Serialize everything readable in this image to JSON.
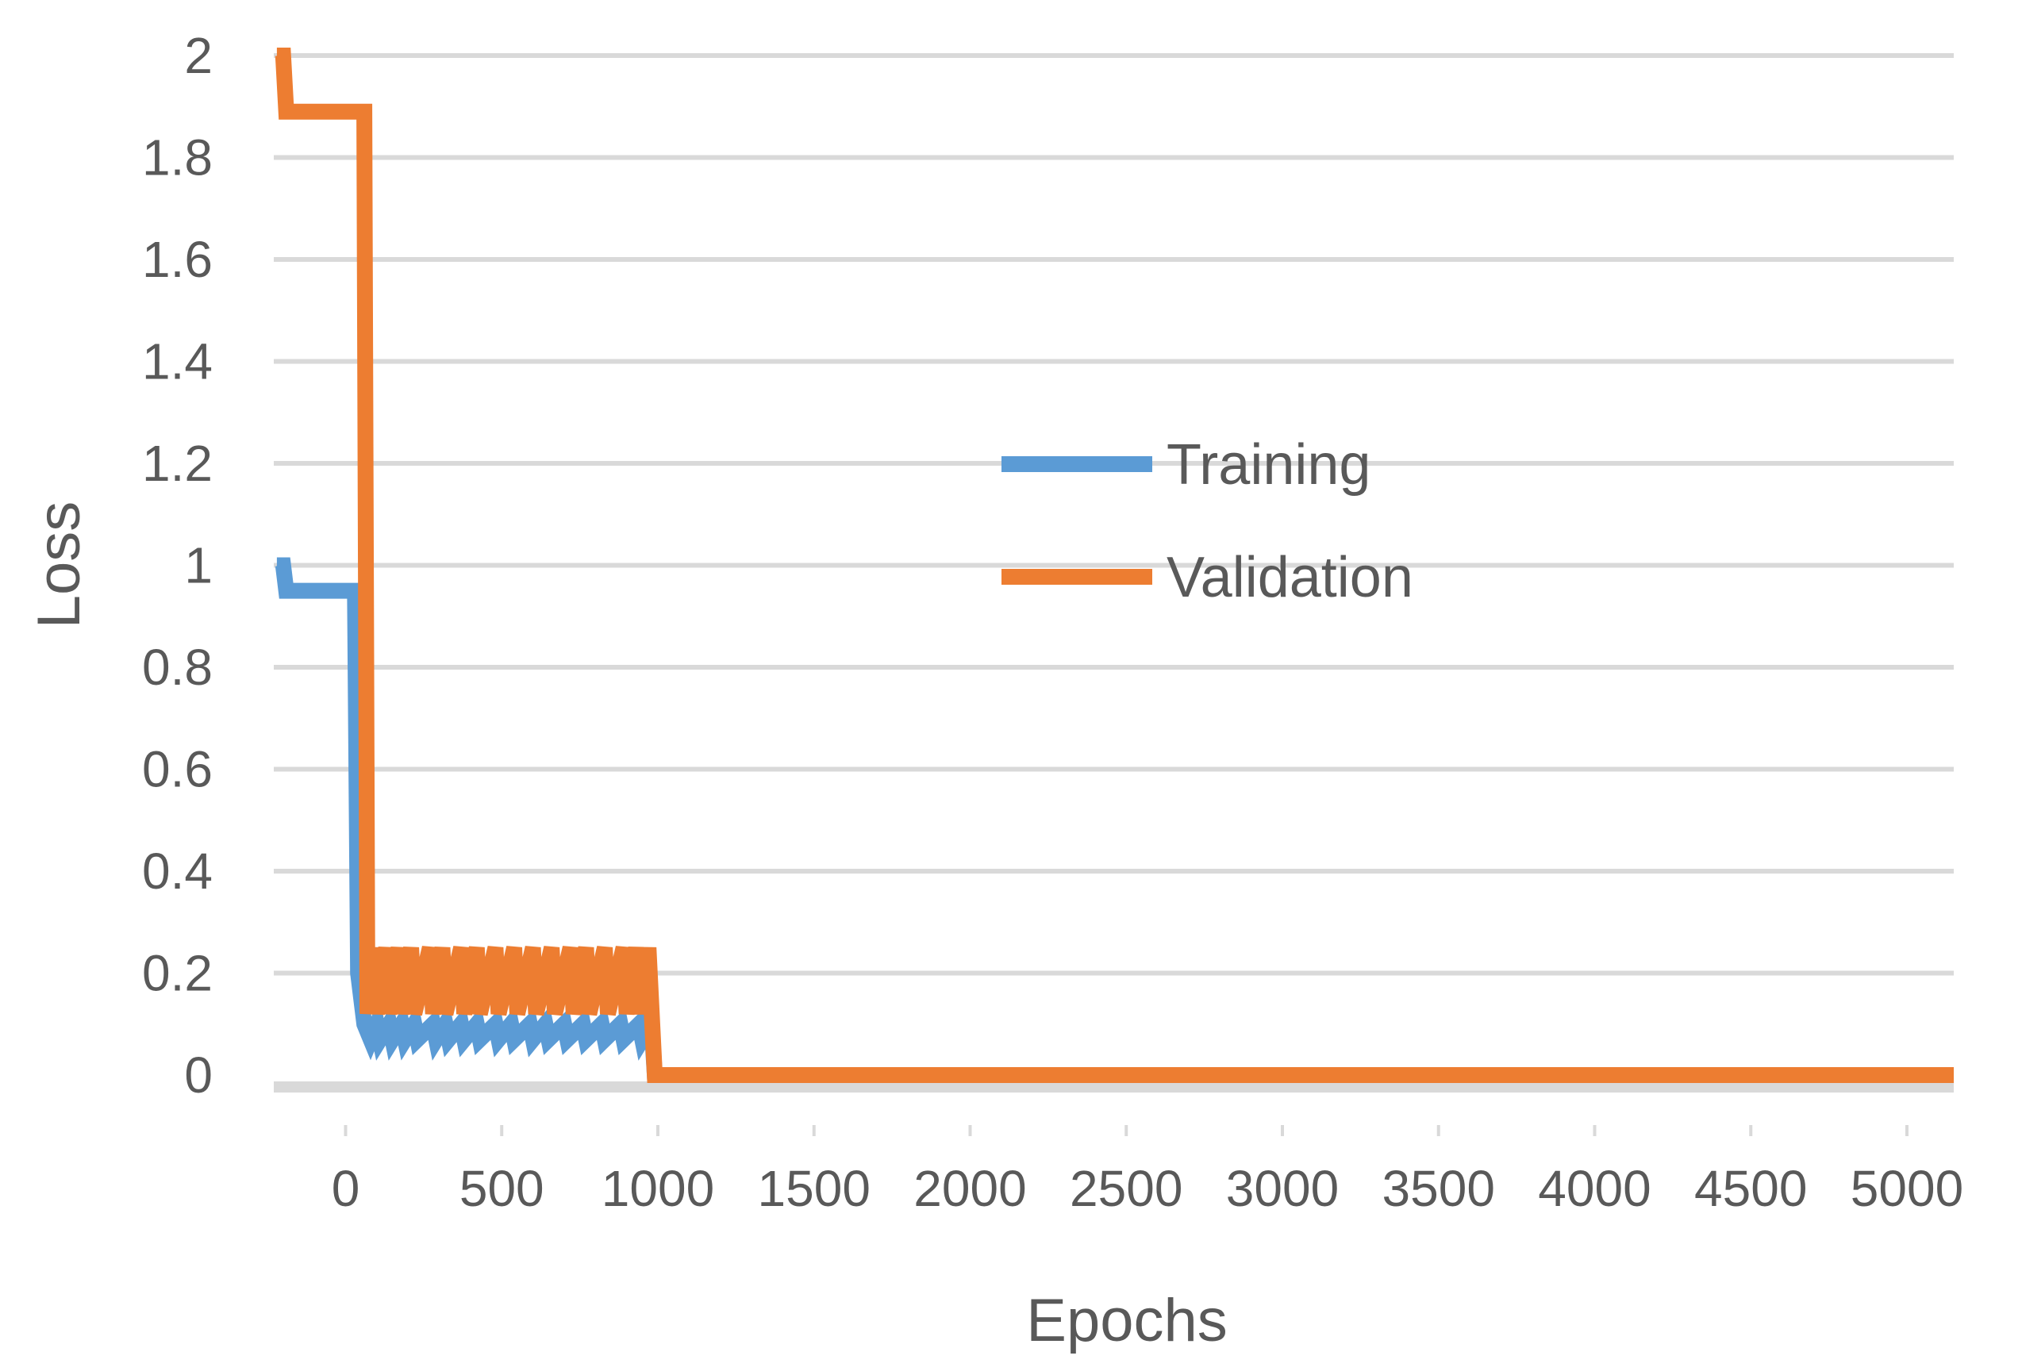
{
  "chart_data": {
    "type": "line",
    "xlabel": "Epochs",
    "ylabel": "Loss",
    "xlim": [
      -230,
      5150
    ],
    "ylim": [
      0,
      2
    ],
    "x_ticks": [
      "0",
      "500",
      "1000",
      "1500",
      "2000",
      "2500",
      "3000",
      "3500",
      "4000",
      "4500",
      "5000"
    ],
    "y_ticks": [
      "0",
      "0.2",
      "0.4",
      "0.6",
      "0.8",
      "1",
      "1.2",
      "1.4",
      "1.6",
      "1.8",
      "2"
    ],
    "grid": true,
    "legend_position": "center",
    "series": [
      {
        "name": "Training",
        "color": "#5b9bd5",
        "points": [
          [
            -220,
            1.0
          ],
          [
            -200,
            1.0
          ],
          [
            -190,
            0.95
          ],
          [
            30,
            0.95
          ],
          [
            40,
            0.2
          ],
          [
            60,
            0.1
          ],
          [
            80,
            0.07
          ],
          [
            100,
            0.1
          ],
          [
            110,
            0.07
          ],
          [
            140,
            0.1
          ],
          [
            150,
            0.07
          ],
          [
            180,
            0.1
          ],
          [
            190,
            0.07
          ],
          [
            220,
            0.1
          ],
          [
            230,
            0.07
          ],
          [
            280,
            0.1
          ],
          [
            290,
            0.07
          ],
          [
            320,
            0.1
          ],
          [
            330,
            0.07
          ],
          [
            370,
            0.1
          ],
          [
            380,
            0.07
          ],
          [
            420,
            0.1
          ],
          [
            430,
            0.07
          ],
          [
            480,
            0.1
          ],
          [
            490,
            0.07
          ],
          [
            530,
            0.1
          ],
          [
            540,
            0.07
          ],
          [
            590,
            0.1
          ],
          [
            600,
            0.07
          ],
          [
            640,
            0.1
          ],
          [
            650,
            0.07
          ],
          [
            700,
            0.1
          ],
          [
            710,
            0.07
          ],
          [
            760,
            0.1
          ],
          [
            770,
            0.07
          ],
          [
            820,
            0.1
          ],
          [
            830,
            0.07
          ],
          [
            880,
            0.1
          ],
          [
            890,
            0.07
          ],
          [
            940,
            0.1
          ],
          [
            950,
            0.07
          ],
          [
            980,
            0.1
          ],
          [
            990,
            0.0
          ],
          [
            5150,
            0.0
          ]
        ]
      },
      {
        "name": "Validation",
        "color": "#ed7d31",
        "points": [
          [
            -220,
            2.0
          ],
          [
            -200,
            2.0
          ],
          [
            -190,
            1.89
          ],
          [
            60,
            1.89
          ],
          [
            70,
            0.12
          ],
          [
            90,
            0.25
          ],
          [
            100,
            0.12
          ],
          [
            130,
            0.25
          ],
          [
            140,
            0.12
          ],
          [
            170,
            0.25
          ],
          [
            180,
            0.12
          ],
          [
            210,
            0.25
          ],
          [
            220,
            0.12
          ],
          [
            270,
            0.25
          ],
          [
            280,
            0.12
          ],
          [
            310,
            0.25
          ],
          [
            320,
            0.12
          ],
          [
            370,
            0.25
          ],
          [
            380,
            0.12
          ],
          [
            420,
            0.25
          ],
          [
            430,
            0.12
          ],
          [
            480,
            0.25
          ],
          [
            490,
            0.12
          ],
          [
            540,
            0.25
          ],
          [
            550,
            0.12
          ],
          [
            600,
            0.25
          ],
          [
            610,
            0.12
          ],
          [
            660,
            0.25
          ],
          [
            670,
            0.12
          ],
          [
            720,
            0.25
          ],
          [
            730,
            0.12
          ],
          [
            770,
            0.25
          ],
          [
            780,
            0.12
          ],
          [
            830,
            0.25
          ],
          [
            840,
            0.12
          ],
          [
            890,
            0.25
          ],
          [
            900,
            0.12
          ],
          [
            930,
            0.25
          ],
          [
            950,
            0.12
          ],
          [
            970,
            0.25
          ],
          [
            990,
            0.0
          ],
          [
            5150,
            0.0
          ]
        ]
      }
    ]
  }
}
